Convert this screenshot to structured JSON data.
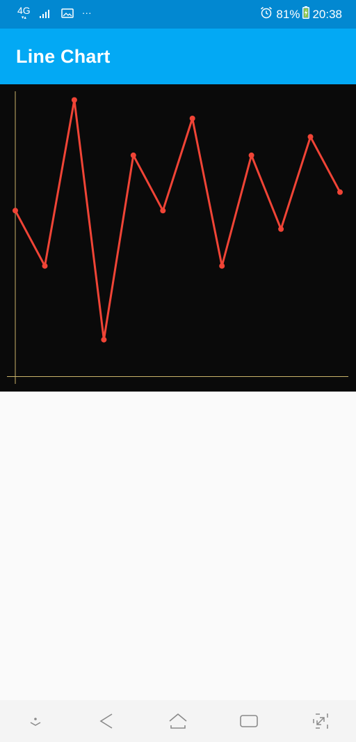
{
  "status_bar": {
    "network": "4G",
    "more": "···",
    "battery_percent": "81%",
    "time": "20:38",
    "icons": [
      "network-4g-icon",
      "signal-icon",
      "image-icon",
      "alarm-icon",
      "battery-charging-icon"
    ]
  },
  "app_bar": {
    "title": "Line Chart"
  },
  "colors": {
    "status_bar": "#0288d1",
    "app_bar": "#03a9f4",
    "chart_background": "#0a0a0a",
    "line": "#f04436",
    "axis": "#c9b36b"
  },
  "chart_data": {
    "type": "line",
    "title": "",
    "xlabel": "",
    "ylabel": "",
    "grid": false,
    "legend": "none",
    "x": [
      0,
      1,
      2,
      3,
      4,
      5,
      6,
      7,
      8,
      9,
      10,
      11
    ],
    "series": [
      {
        "values": [
          6,
          3,
          12,
          -1,
          9,
          6,
          11,
          3,
          9,
          5,
          10,
          7
        ]
      }
    ],
    "xlim": [
      0,
      11
    ],
    "ylim": [
      -3,
      12
    ]
  },
  "nav_bar": {
    "buttons": [
      "notification-pull-icon",
      "back-icon",
      "home-icon",
      "recents-icon",
      "screenshot-expand-icon"
    ]
  }
}
